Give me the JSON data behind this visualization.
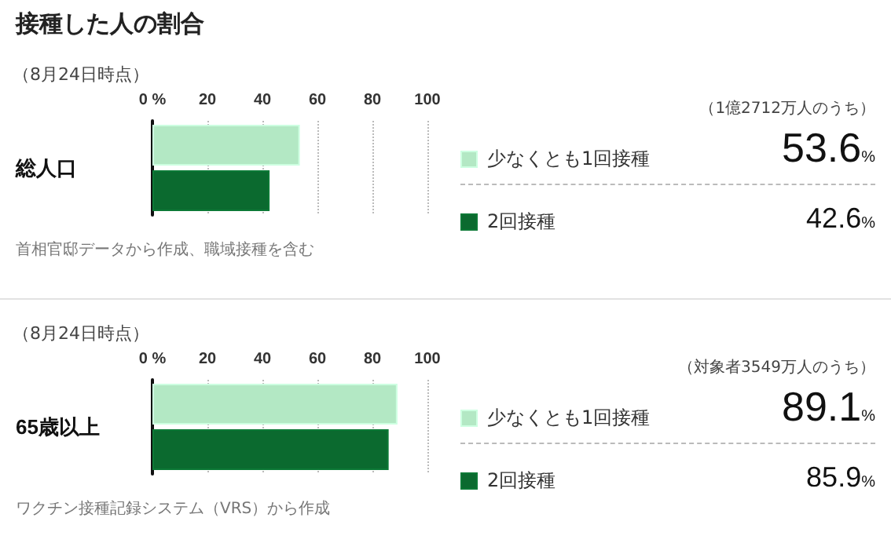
{
  "chart_data": [
    {
      "type": "bar",
      "orientation": "horizontal",
      "title": "接種した人の割合",
      "subtitle": "（8月24日時点）",
      "categories": [
        "総人口"
      ],
      "series": [
        {
          "name": "少なくとも1回接種",
          "color": "#b3e8c4",
          "values": [
            53.6
          ]
        },
        {
          "name": "2回接種",
          "color": "#0b6a2f",
          "values": [
            42.6
          ]
        }
      ],
      "xlim": [
        0,
        100
      ],
      "xticks": [
        {
          "value": 0,
          "label": "0 %"
        },
        20,
        40,
        60,
        80,
        100
      ],
      "grid": "x",
      "legend": "right",
      "annotations": [
        "（1億2712万人のうち）",
        "53.6%",
        "42.6%",
        "首相官邸データから作成、職域接種を含む"
      ]
    },
    {
      "type": "bar",
      "orientation": "horizontal",
      "subtitle": "（8月24日時点）",
      "categories": [
        "65歳以上"
      ],
      "series": [
        {
          "name": "少なくとも1回接種",
          "color": "#b3e8c4",
          "values": [
            89.1
          ]
        },
        {
          "name": "2回接種",
          "color": "#0b6a2f",
          "values": [
            85.9
          ]
        }
      ],
      "xlim": [
        0,
        100
      ],
      "xticks": [
        {
          "value": 0,
          "label": "0 %"
        },
        20,
        40,
        60,
        80,
        100
      ],
      "grid": "x",
      "legend": "right",
      "annotations": [
        "（対象者3549万人のうち）",
        "89.1%",
        "85.9%",
        "ワクチン接種記録システム（VRS）から作成"
      ]
    }
  ]
}
